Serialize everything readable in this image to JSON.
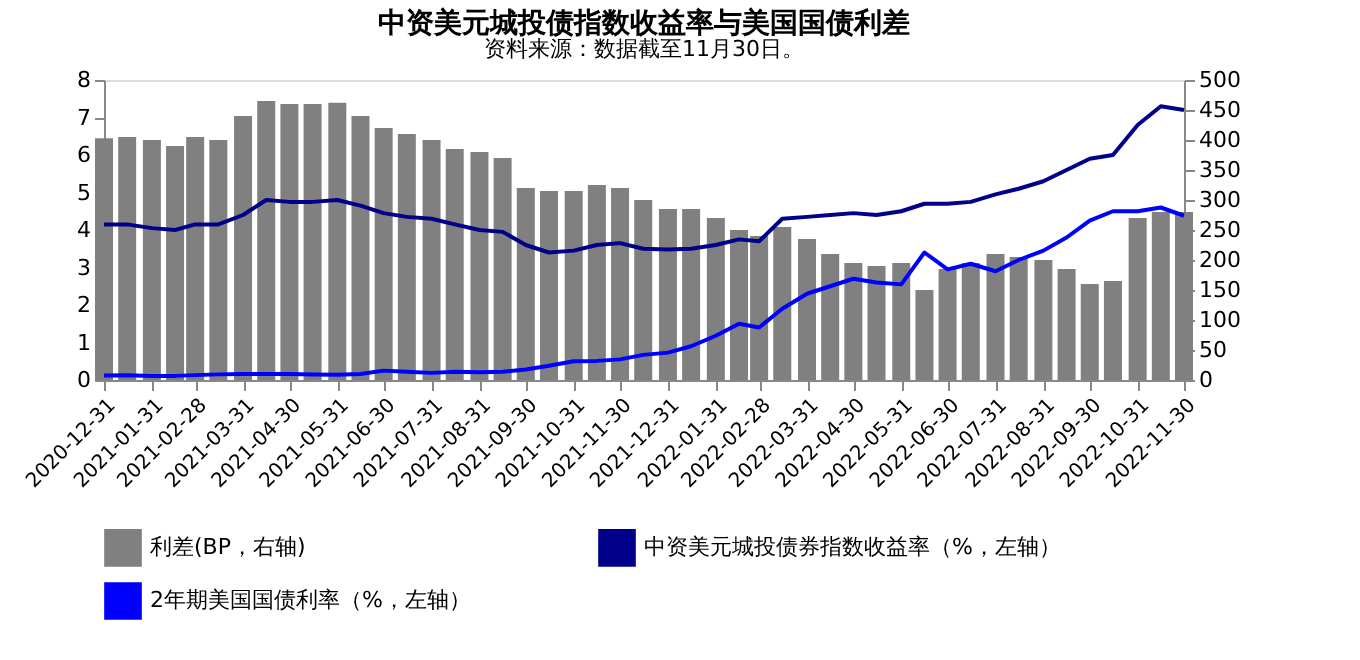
{
  "chart_data": {
    "type": "bar",
    "title": "中资美元城投债指数收益率与美国国债利差",
    "x": [
      "2020-12-31",
      "2021-01-15",
      "2021-01-31",
      "2021-02-15",
      "2021-02-28",
      "2021-03-15",
      "2021-03-31",
      "2021-04-15",
      "2021-04-30",
      "2021-05-15",
      "2021-05-31",
      "2021-06-15",
      "2021-06-30",
      "2021-07-15",
      "2021-07-31",
      "2021-08-15",
      "2021-08-31",
      "2021-09-15",
      "2021-09-30",
      "2021-10-15",
      "2021-10-31",
      "2021-11-15",
      "2021-11-30",
      "2021-12-15",
      "2021-12-31",
      "2022-01-15",
      "2022-01-31",
      "2022-02-15",
      "2022-02-28",
      "2022-03-15",
      "2022-03-31",
      "2022-04-15",
      "2022-04-30",
      "2022-05-15",
      "2022-05-31",
      "2022-06-15",
      "2022-06-30",
      "2022-07-15",
      "2022-07-31",
      "2022-08-15",
      "2022-08-31",
      "2022-09-15",
      "2022-09-30",
      "2022-10-15",
      "2022-10-31",
      "2022-11-15",
      "2022-11-30"
    ],
    "series": [
      {
        "name": "利差(BP，右轴)",
        "axis": "y2",
        "color": "#808080",
        "values": [
          403,
          405,
          400,
          390,
          405,
          400,
          440,
          465,
          460,
          460,
          462,
          440,
          420,
          410,
          400,
          385,
          380,
          370,
          320,
          315,
          315,
          325,
          320,
          300,
          285,
          285,
          270,
          250,
          240,
          255,
          235,
          210,
          195,
          190,
          195,
          150,
          185,
          195,
          210,
          205,
          200,
          185,
          160,
          165,
          270,
          280,
          280
        ]
      },
      {
        "name": "中资美元城投债券指数收益率（%，左轴）",
        "type": "line",
        "color": "#00008b",
        "values": [
          4.15,
          4.15,
          4.05,
          4.0,
          4.15,
          4.15,
          4.4,
          4.8,
          4.75,
          4.75,
          4.8,
          4.65,
          4.45,
          4.35,
          4.3,
          4.15,
          4.0,
          3.95,
          3.6,
          3.4,
          3.45,
          3.6,
          3.65,
          3.5,
          3.48,
          3.5,
          3.6,
          3.75,
          3.7,
          4.3,
          4.35,
          4.4,
          4.45,
          4.4,
          4.5,
          4.7,
          4.7,
          4.75,
          4.95,
          5.1,
          5.3,
          5.6,
          5.9,
          6.0,
          6.8,
          7.3,
          7.2
        ]
      },
      {
        "name": "2年期美国国债利率（%，左轴）",
        "type": "line",
        "color": "#0000ff",
        "values": [
          0.12,
          0.13,
          0.11,
          0.11,
          0.13,
          0.15,
          0.16,
          0.16,
          0.16,
          0.15,
          0.14,
          0.16,
          0.25,
          0.22,
          0.19,
          0.22,
          0.21,
          0.22,
          0.28,
          0.38,
          0.5,
          0.51,
          0.55,
          0.67,
          0.73,
          0.9,
          1.18,
          1.5,
          1.4,
          1.9,
          2.3,
          2.5,
          2.7,
          2.6,
          2.55,
          3.4,
          2.95,
          3.1,
          2.9,
          3.2,
          3.45,
          3.8,
          4.25,
          4.5,
          4.5,
          4.6,
          4.38
        ]
      }
    ],
    "xlim": [
      "2020-12-31",
      "2022-11-30"
    ],
    "xticks": [
      "2020-12-31",
      "2021-01-31",
      "2021-02-28",
      "2021-03-31",
      "2021-04-30",
      "2021-05-31",
      "2021-06-30",
      "2021-07-31",
      "2021-08-31",
      "2021-09-30",
      "2021-10-31",
      "2021-11-30",
      "2021-12-31",
      "2022-01-31",
      "2022-02-28",
      "2022-03-31",
      "2022-04-30",
      "2022-05-31",
      "2022-06-30",
      "2022-07-31",
      "2022-08-31",
      "2022-09-30",
      "2022-10-31",
      "2022-11-30"
    ],
    "ylim": [
      0,
      8
    ],
    "yticks": [
      0,
      1,
      2,
      3,
      4,
      5,
      6,
      7,
      8
    ],
    "y2lim": [
      0,
      500
    ],
    "y2ticks": [
      0,
      50,
      100,
      150,
      200,
      250,
      300,
      350,
      400,
      450,
      500
    ],
    "legend": "bottom",
    "grid": false,
    "annotations": [
      "资料来源：数据截至11月30日。"
    ]
  }
}
